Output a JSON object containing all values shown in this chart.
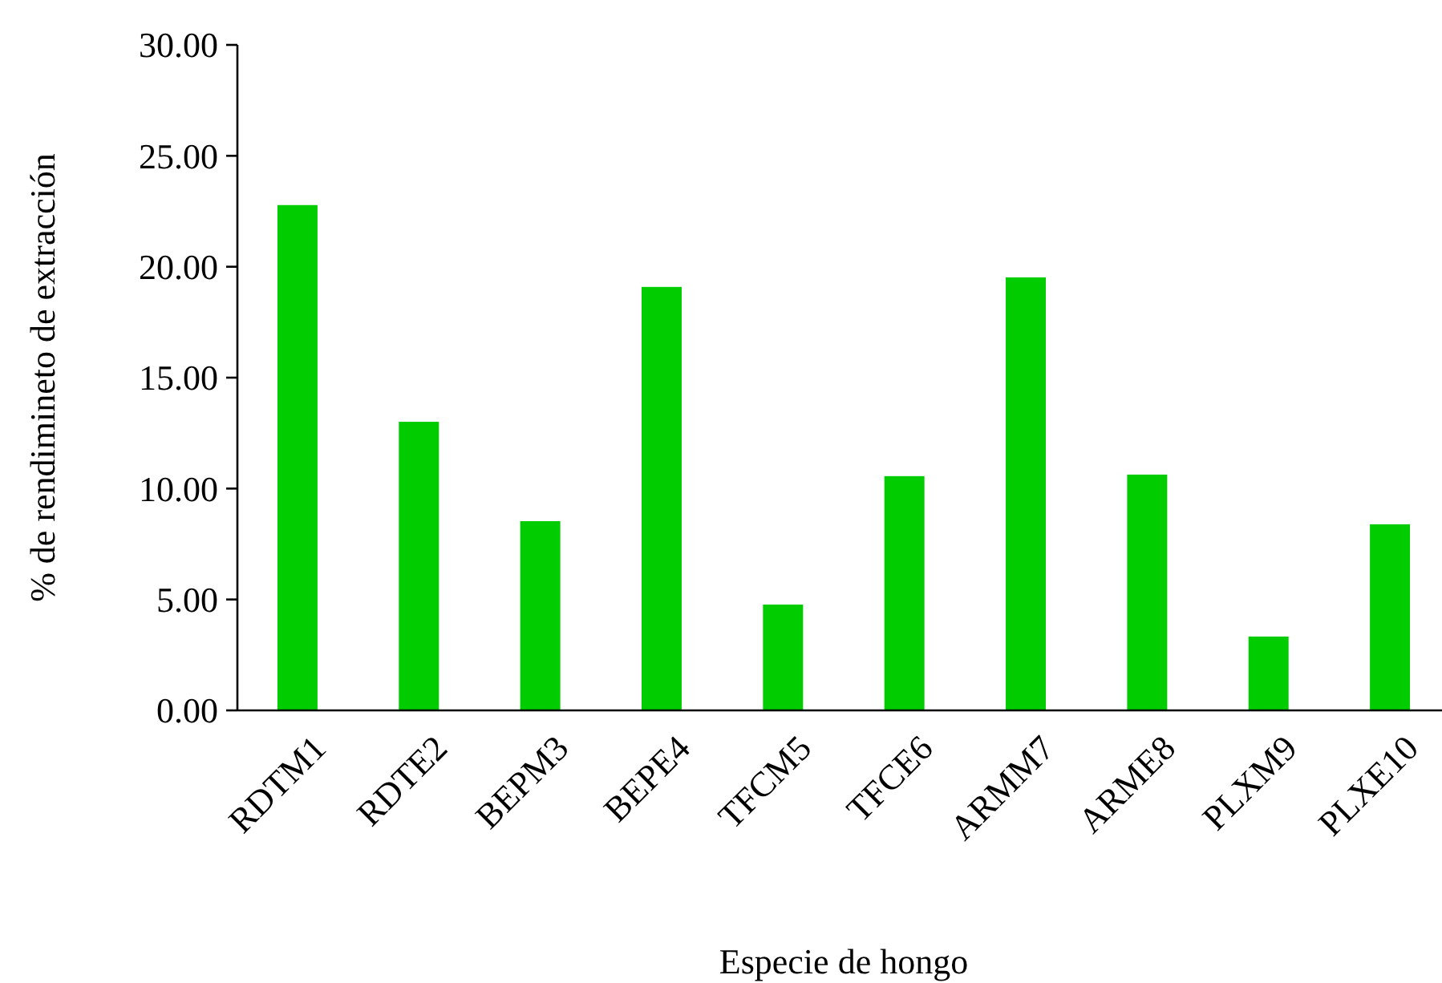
{
  "chart_data": {
    "type": "bar",
    "xlabel": "Especie de hongo",
    "ylabel": "% de rendimineto de extracción",
    "categories": [
      "RDTM1",
      "RDTE2",
      "BEPM3",
      "BEPE4",
      "TFCM5",
      "TFCE6",
      "ARMM7",
      "ARME8",
      "PLXM9",
      "PLXE10"
    ],
    "values": [
      22.78,
      13.01,
      8.53,
      19.09,
      4.77,
      10.56,
      19.52,
      10.63,
      3.33,
      8.39
    ],
    "color": "#00cc00",
    "ylim": [
      0,
      30
    ],
    "yticks": [
      {
        "value": 0,
        "label": "0.00"
      },
      {
        "value": 5,
        "label": "5.00"
      },
      {
        "value": 10,
        "label": "10.00"
      },
      {
        "value": 15,
        "label": "15.00"
      },
      {
        "value": 20,
        "label": "20.00"
      },
      {
        "value": 25,
        "label": "25.00"
      },
      {
        "value": 30,
        "label": "30.00"
      }
    ],
    "grid": false
  }
}
